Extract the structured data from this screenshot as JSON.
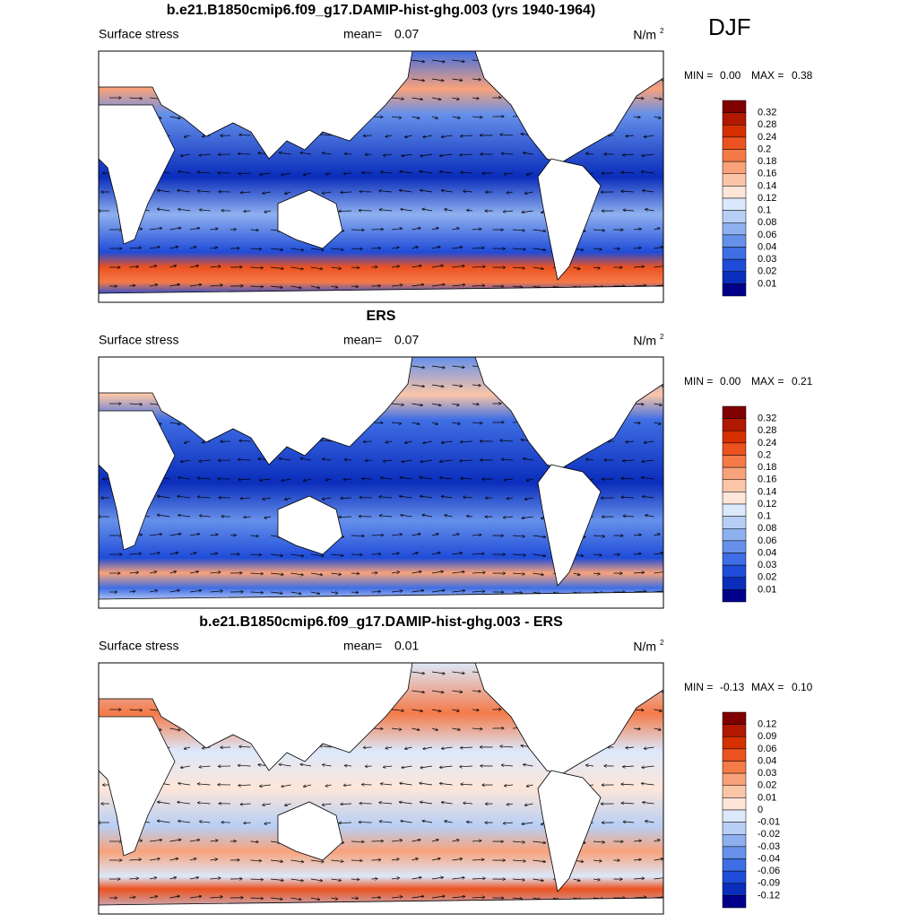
{
  "season": "DJF",
  "panels": [
    {
      "title": "b.e21.B1850cmip6.f09_g17.DAMIP-hist-ghg.003 (yrs 1940-1964)",
      "left": "Surface stress",
      "mean_label": "mean=",
      "mean": "0.07",
      "units": "N/m",
      "units_sup": "2",
      "min_label": "MIN =",
      "min": "0.00",
      "max_label": "MAX =",
      "max": "0.38",
      "colorbar": {
        "labels": [
          "0.32",
          "0.28",
          "0.24",
          "0.2",
          "0.18",
          "0.16",
          "0.14",
          "0.12",
          "0.1",
          "0.08",
          "0.06",
          "0.04",
          "0.03",
          "0.02",
          "0.01"
        ],
        "colors": [
          "#7f0000",
          "#b01800",
          "#d63000",
          "#ec5220",
          "#f47a48",
          "#f8a27a",
          "#fbc6a8",
          "#fde6d8",
          "#dce8fb",
          "#b8cff5",
          "#8fb0ef",
          "#6690ea",
          "#3f6ee4",
          "#1f4cd8",
          "#0a2dbb",
          "#00008a"
        ]
      }
    },
    {
      "title": "ERS",
      "left": "Surface stress",
      "mean_label": "mean=",
      "mean": "0.07",
      "units": "N/m",
      "units_sup": "2",
      "min_label": "MIN =",
      "min": "0.00",
      "max_label": "MAX =",
      "max": "0.21",
      "colorbar": {
        "labels": [
          "0.32",
          "0.28",
          "0.24",
          "0.2",
          "0.18",
          "0.16",
          "0.14",
          "0.12",
          "0.1",
          "0.08",
          "0.06",
          "0.04",
          "0.03",
          "0.02",
          "0.01"
        ],
        "colors": [
          "#7f0000",
          "#b01800",
          "#d63000",
          "#ec5220",
          "#f47a48",
          "#f8a27a",
          "#fbc6a8",
          "#fde6d8",
          "#dce8fb",
          "#b8cff5",
          "#8fb0ef",
          "#6690ea",
          "#3f6ee4",
          "#1f4cd8",
          "#0a2dbb",
          "#00008a"
        ]
      }
    },
    {
      "title": "b.e21.B1850cmip6.f09_g17.DAMIP-hist-ghg.003 - ERS",
      "left": "Surface stress",
      "mean_label": "mean=",
      "mean": "0.01",
      "units": "N/m",
      "units_sup": "2",
      "min_label": "MIN =",
      "min": "-0.13",
      "max_label": "MAX =",
      "max": "0.10",
      "colorbar": {
        "labels": [
          "0.12",
          "0.09",
          "0.06",
          "0.04",
          "0.03",
          "0.02",
          "0.01",
          "0",
          "-0.01",
          "-0.02",
          "-0.03",
          "-0.04",
          "-0.06",
          "-0.09",
          "-0.12"
        ],
        "colors": [
          "#7f0000",
          "#b01800",
          "#d63000",
          "#ec5220",
          "#f47a48",
          "#f8a27a",
          "#fbc6a8",
          "#fde6d8",
          "#dce8fb",
          "#b8cff5",
          "#8fb0ef",
          "#6690ea",
          "#3f6ee4",
          "#1f4cd8",
          "#0a2dbb",
          "#00008a"
        ]
      }
    }
  ]
}
